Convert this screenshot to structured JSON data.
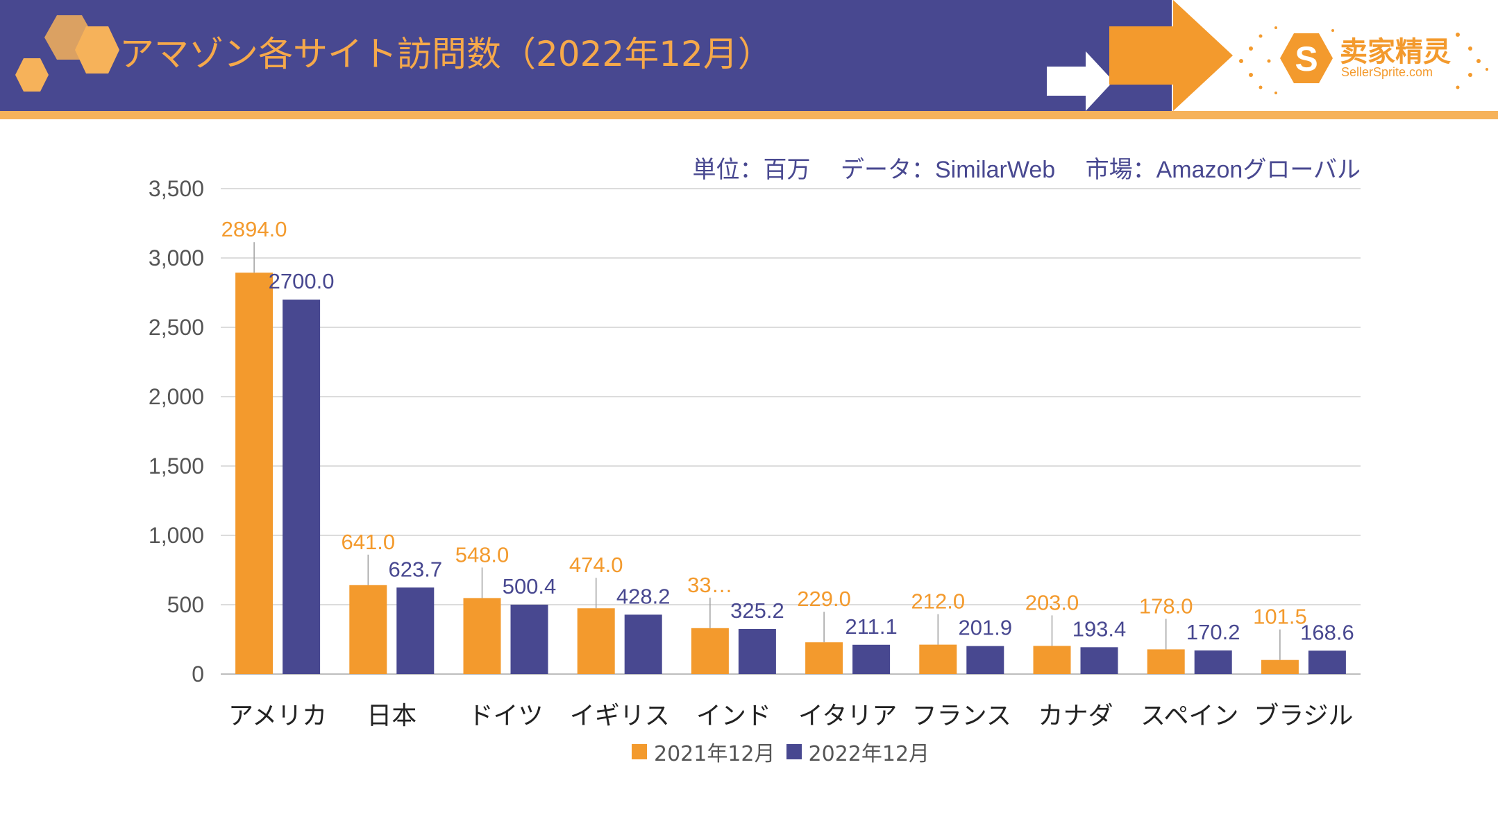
{
  "header": {
    "title": "アマゾン各サイト訪問数（2022年12月）",
    "colors": {
      "band": "#484890",
      "accent": "#f6a94a",
      "line": "#f6b25a"
    }
  },
  "logo": {
    "name_cn": "卖家精灵",
    "name_en": "SellerSprite.com",
    "icon": "s-hexagon-icon"
  },
  "chart_data": {
    "type": "bar",
    "subtitle": "単位：百万　 データ：SimilarWeb　 市場：Amazonグローバル",
    "categories": [
      "アメリカ",
      "日本",
      "ドイツ",
      "イギリス",
      "インド",
      "イタリア",
      "フランス",
      "カナダ",
      "スペイン",
      "ブラジル"
    ],
    "series": [
      {
        "name": "2021年12月",
        "color": "#f39a2d",
        "values": [
          2894.0,
          641.0,
          548.0,
          474.0,
          331.0,
          229.0,
          212.0,
          203.0,
          178.0,
          101.5
        ],
        "labels": [
          "2894.0",
          "641.0",
          "548.0",
          "474.0",
          "33…",
          "229.0",
          "212.0",
          "203.0",
          "178.0",
          "101.5"
        ]
      },
      {
        "name": "2022年12月",
        "color": "#484890",
        "values": [
          2700.0,
          623.7,
          500.4,
          428.2,
          325.2,
          211.1,
          201.9,
          193.4,
          170.2,
          168.6
        ],
        "labels": [
          "2700.0",
          "623.7",
          "500.4",
          "428.2",
          "325.2",
          "211.1",
          "201.9",
          "193.4",
          "170.2",
          "168.6"
        ]
      }
    ],
    "ylim": [
      0,
      3500
    ],
    "yticks": [
      "0",
      "500",
      "1,000",
      "1,500",
      "2,000",
      "2,500",
      "3,000",
      "3,500"
    ],
    "ytick_values": [
      0,
      500,
      1000,
      1500,
      2000,
      2500,
      3000,
      3500
    ],
    "grid": true,
    "legend_position": "bottom"
  }
}
